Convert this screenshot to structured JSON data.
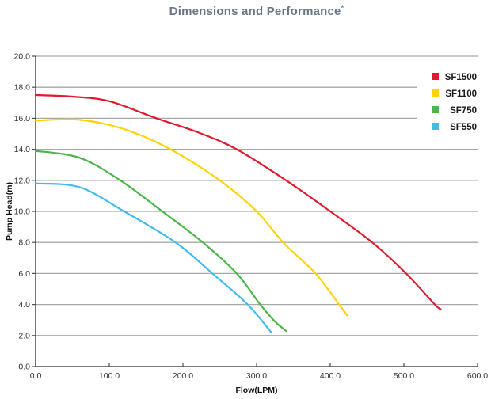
{
  "title": {
    "text": "Dimensions and Performance",
    "asterisk": "*",
    "color": "#6a7683"
  },
  "chart_data": {
    "type": "line",
    "title": "Dimensions and Performance*",
    "xlabel": "Flow(LPM)",
    "ylabel": "Pump Head(m)",
    "xlim": [
      0,
      600
    ],
    "ylim": [
      0,
      20
    ],
    "x_tick_step": 100,
    "y_tick_step": 2,
    "x_tick_labels": [
      "0.0",
      "100.0",
      "200.0",
      "300.0",
      "400.0",
      "500.0",
      "600.0"
    ],
    "y_tick_labels": [
      "0.0",
      "2.0",
      "4.0",
      "6.0",
      "8.0",
      "10.0",
      "12.0",
      "14.0",
      "16.0",
      "18.0",
      "20.0"
    ],
    "grid": "horizontal",
    "legend_position": "top-right",
    "series": [
      {
        "name": "SF1500",
        "color": "#e01a2d",
        "points": [
          [
            0,
            17.5
          ],
          [
            50,
            17.4
          ],
          [
            100,
            17.1
          ],
          [
            164,
            16.0
          ],
          [
            220,
            15.1
          ],
          [
            273,
            14.0
          ],
          [
            340,
            12.0
          ],
          [
            400,
            10.0
          ],
          [
            457,
            8.0
          ],
          [
            503,
            6.0
          ],
          [
            542,
            4.0
          ],
          [
            550,
            3.7
          ]
        ]
      },
      {
        "name": "SF1100",
        "color": "#ffd20a",
        "points": [
          [
            0,
            15.85
          ],
          [
            60,
            15.9
          ],
          [
            120,
            15.3
          ],
          [
            183,
            14.0
          ],
          [
            250,
            12.0
          ],
          [
            300,
            10.0
          ],
          [
            336,
            8.0
          ],
          [
            380,
            6.0
          ],
          [
            412,
            4.0
          ],
          [
            423,
            3.3
          ]
        ]
      },
      {
        "name": "SF750",
        "color": "#4ab648",
        "points": [
          [
            0,
            13.9
          ],
          [
            60,
            13.45
          ],
          [
            115,
            12.0
          ],
          [
            172,
            10.0
          ],
          [
            227,
            8.0
          ],
          [
            273,
            6.0
          ],
          [
            305,
            4.0
          ],
          [
            325,
            2.9
          ],
          [
            340,
            2.3
          ]
        ]
      },
      {
        "name": "SF550",
        "color": "#41bbee",
        "points": [
          [
            0,
            11.8
          ],
          [
            60,
            11.55
          ],
          [
            120,
            10.0
          ],
          [
            190,
            8.0
          ],
          [
            240,
            6.0
          ],
          [
            288,
            4.0
          ],
          [
            320,
            2.2
          ]
        ]
      }
    ],
    "style": {
      "grid_color": "#a8a8a8",
      "axis_color": "#4d4d4d",
      "tick_label_color": "#333333",
      "axis_title_color": "#111111",
      "legend_text_color": "#1a1a1a",
      "background": "#ffffff"
    }
  }
}
